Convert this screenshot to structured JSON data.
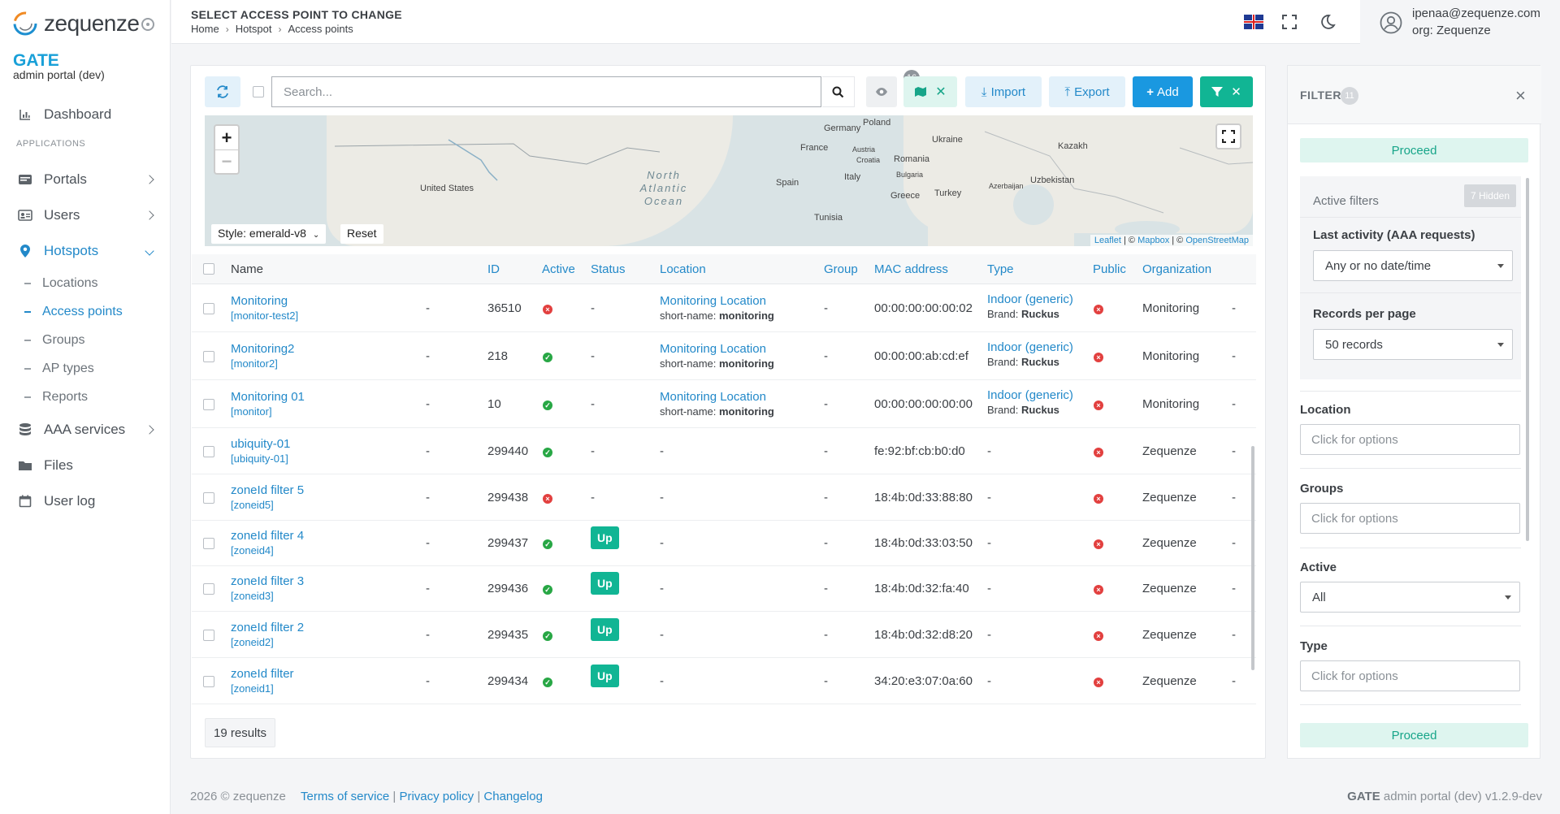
{
  "app": {
    "logo_text": "zequenze",
    "brand": "GATE",
    "brand_sub": "admin portal (dev)"
  },
  "sidebar": {
    "dashboard": "Dashboard",
    "section": "APPLICATIONS",
    "portals": "Portals",
    "users": "Users",
    "hotspots": "Hotspots",
    "sub": [
      "Locations",
      "Access points",
      "Groups",
      "AP types",
      "Reports"
    ],
    "aaa": "AAA services",
    "files": "Files",
    "userlog": "User log"
  },
  "header": {
    "title": "SELECT ACCESS POINT TO CHANGE",
    "breadcrumb": [
      "Home",
      "Hotspot",
      "Access points"
    ],
    "user_email": "ipenaa@zequenze.com",
    "user_org": "org: Zequenze"
  },
  "toolbar": {
    "search_placeholder": "Search...",
    "view_count": "16",
    "import_label": "Import",
    "export_label": "Export",
    "add_label": "Add"
  },
  "map": {
    "style_label": "Style: emerald-v8",
    "reset_label": "Reset",
    "labels": [
      "United States",
      "Germany",
      "Poland",
      "Ukraine",
      "France",
      "Austria",
      "Croatia",
      "Romania",
      "Bulgaria",
      "Italy",
      "Spain",
      "Greece",
      "Turkey",
      "Tunisia",
      "Azerbaijan",
      "Uzbekistan",
      "Kazakh"
    ],
    "ocean": "North Atlantic Ocean",
    "attribution": [
      "Leaflet",
      "Mapbox",
      "OpenStreetMap"
    ]
  },
  "table": {
    "columns": [
      "Name",
      "ID",
      "Active",
      "Status",
      "Location",
      "Group",
      "MAC address",
      "Type",
      "Public",
      "Organization"
    ],
    "rows": [
      {
        "name": "Monitoring",
        "slug": "[monitor-test2]",
        "dash": "-",
        "id": "36510",
        "active": "no",
        "status": "-",
        "location": "Monitoring Location",
        "short_label": "short-name:",
        "short": "monitoring",
        "group": "-",
        "mac": "00:00:00:00:00:02",
        "type": "Indoor (generic)",
        "brand_label": "Brand:",
        "brand": "Ruckus",
        "public": "no",
        "org": "Monitoring",
        "end": "-"
      },
      {
        "name": "Monitoring2",
        "slug": "[monitor2]",
        "dash": "-",
        "id": "218",
        "active": "ok",
        "status": "-",
        "location": "Monitoring Location",
        "short_label": "short-name:",
        "short": "monitoring",
        "group": "-",
        "mac": "00:00:00:ab:cd:ef",
        "type": "Indoor (generic)",
        "brand_label": "Brand:",
        "brand": "Ruckus",
        "public": "no",
        "org": "Monitoring",
        "end": "-"
      },
      {
        "name": "Monitoring 01",
        "slug": "[monitor]",
        "dash": "-",
        "id": "10",
        "active": "ok",
        "status": "-",
        "location": "Monitoring Location",
        "short_label": "short-name:",
        "short": "monitoring",
        "group": "-",
        "mac": "00:00:00:00:00:00",
        "type": "Indoor (generic)",
        "brand_label": "Brand:",
        "brand": "Ruckus",
        "public": "no",
        "org": "Monitoring",
        "end": "-"
      },
      {
        "name": "ubiquity-01",
        "slug": "[ubiquity-01]",
        "dash": "-",
        "id": "299440",
        "active": "ok",
        "status": "-",
        "location": "-",
        "group": "-",
        "mac": "fe:92:bf:cb:b0:d0",
        "type": "-",
        "public": "no",
        "org": "Zequenze",
        "end": "-"
      },
      {
        "name": "zoneId filter 5",
        "slug": "[zoneid5]",
        "dash": "-",
        "id": "299438",
        "active": "no",
        "status": "-",
        "location": "-",
        "group": "-",
        "mac": "18:4b:0d:33:88:80",
        "type": "-",
        "public": "no",
        "org": "Zequenze",
        "end": "-"
      },
      {
        "name": "zoneId filter 4",
        "slug": "[zoneid4]",
        "dash": "-",
        "id": "299437",
        "active": "ok",
        "status": "Up",
        "location": "-",
        "group": "-",
        "mac": "18:4b:0d:33:03:50",
        "type": "-",
        "public": "no",
        "org": "Zequenze",
        "end": "-"
      },
      {
        "name": "zoneId filter 3",
        "slug": "[zoneid3]",
        "dash": "-",
        "id": "299436",
        "active": "ok",
        "status": "Up",
        "location": "-",
        "group": "-",
        "mac": "18:4b:0d:32:fa:40",
        "type": "-",
        "public": "no",
        "org": "Zequenze",
        "end": "-"
      },
      {
        "name": "zoneId filter 2",
        "slug": "[zoneid2]",
        "dash": "-",
        "id": "299435",
        "active": "ok",
        "status": "Up",
        "location": "-",
        "group": "-",
        "mac": "18:4b:0d:32:d8:20",
        "type": "-",
        "public": "no",
        "org": "Zequenze",
        "end": "-"
      },
      {
        "name": "zoneId filter",
        "slug": "[zoneid1]",
        "dash": "-",
        "id": "299434",
        "active": "ok",
        "status": "Up",
        "location": "-",
        "group": "-",
        "mac": "34:20:e3:07:0a:60",
        "type": "-",
        "public": "no",
        "org": "Zequenze",
        "end": "-"
      }
    ],
    "results": "19 results"
  },
  "filter": {
    "title": "FILTER",
    "count": "11",
    "proceed": "Proceed",
    "active_filters": "Active filters",
    "hidden": "7 Hidden",
    "last_activity_label": "Last activity (AAA requests)",
    "last_activity_value": "Any or no date/time",
    "records_label": "Records per page",
    "records_value": "50 records",
    "location_label": "Location",
    "location_placeholder": "Click for options",
    "groups_label": "Groups",
    "groups_placeholder": "Click for options",
    "active_label": "Active",
    "active_value": "All",
    "type_label": "Type",
    "type_placeholder": "Click for options"
  },
  "footer": {
    "copyright": "2026 © zequenze",
    "links": [
      "Terms of service",
      "Privacy policy",
      "Changelog"
    ],
    "sep": "|",
    "version_brand": "GATE",
    "version_text": "admin portal (dev) v1.2.9-dev"
  },
  "colors": {
    "accent": "#2389c9",
    "brand": "#19a0d8",
    "teal": "#11b594",
    "ok": "#28a745",
    "error": "#e2403f"
  }
}
